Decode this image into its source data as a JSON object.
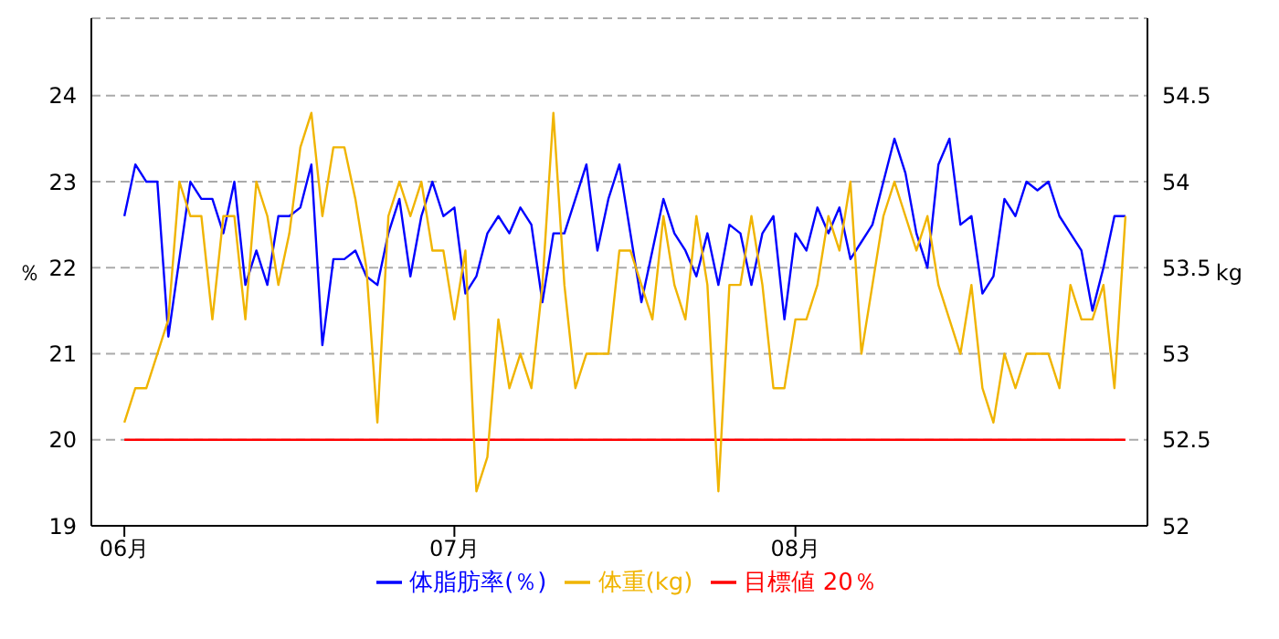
{
  "chart_data": {
    "type": "line",
    "ylabel": "％",
    "y2label": "kg",
    "x": [
      "--06-01",
      "--06-02",
      "--06-03",
      "--06-04",
      "--06-05",
      "--06-06",
      "--06-07",
      "--06-08",
      "--06-09",
      "--06-10",
      "--06-11",
      "--06-12",
      "--06-13",
      "--06-14",
      "--06-15",
      "--06-16",
      "--06-17",
      "--06-18",
      "--06-19",
      "--06-20",
      "--06-21",
      "--06-22",
      "--06-23",
      "--06-24",
      "--06-25",
      "--06-26",
      "--06-27",
      "--06-28",
      "--06-29",
      "--06-30",
      "--07-01",
      "--07-02",
      "--07-03",
      "--07-04",
      "--07-05",
      "--07-06",
      "--07-07",
      "--07-08",
      "--07-09",
      "--07-10",
      "--07-11",
      "--07-12",
      "--07-13",
      "--07-14",
      "--07-15",
      "--07-16",
      "--07-17",
      "--07-18",
      "--07-19",
      "--07-20",
      "--07-21",
      "--07-22",
      "--07-23",
      "--07-24",
      "--07-25",
      "--07-26",
      "--07-27",
      "--07-28",
      "--07-29",
      "--07-30",
      "--07-31",
      "--08-01",
      "--08-02",
      "--08-03",
      "--08-04",
      "--08-05",
      "--08-06",
      "--08-07",
      "--08-08",
      "--08-09",
      "--08-10",
      "--08-11",
      "--08-12",
      "--08-13",
      "--08-14",
      "--08-15",
      "--08-16",
      "--08-17",
      "--08-18",
      "--08-19",
      "--08-20",
      "--08-21",
      "--08-22",
      "--08-23",
      "--08-24",
      "--08-25",
      "--08-26",
      "--08-27",
      "--08-28",
      "--08-29",
      "--08-30",
      "--08-31"
    ],
    "series": [
      {
        "name": "目標値 20％",
        "color": "#ff0000",
        "axis": "y",
        "values": [
          20,
          20,
          20,
          20,
          20,
          20,
          20,
          20,
          20,
          20,
          20,
          20,
          20,
          20,
          20,
          20,
          20,
          20,
          20,
          20,
          20,
          20,
          20,
          20,
          20,
          20,
          20,
          20,
          20,
          20,
          20,
          20,
          20,
          20,
          20,
          20,
          20,
          20,
          20,
          20,
          20,
          20,
          20,
          20,
          20,
          20,
          20,
          20,
          20,
          20,
          20,
          20,
          20,
          20,
          20,
          20,
          20,
          20,
          20,
          20,
          20,
          20,
          20,
          20,
          20,
          20,
          20,
          20,
          20,
          20,
          20,
          20,
          20,
          20,
          20,
          20,
          20,
          20,
          20,
          20,
          20,
          20,
          20,
          20,
          20,
          20,
          20,
          20,
          20,
          20,
          20,
          20
        ]
      },
      {
        "name": "体脂肪率(％)",
        "color": "#0000ff",
        "axis": "y",
        "values": [
          22.6,
          23.2,
          23.0,
          23.0,
          21.2,
          22.1,
          23.0,
          22.8,
          22.8,
          22.4,
          23.0,
          21.8,
          22.2,
          21.8,
          22.6,
          22.6,
          22.7,
          23.2,
          21.1,
          22.1,
          22.1,
          22.2,
          21.9,
          21.8,
          22.4,
          22.8,
          21.9,
          22.6,
          23.0,
          22.6,
          22.7,
          21.7,
          21.9,
          22.4,
          22.6,
          22.4,
          22.7,
          22.5,
          21.6,
          22.4,
          22.4,
          22.8,
          23.2,
          22.2,
          22.8,
          23.2,
          22.4,
          21.6,
          22.2,
          22.8,
          22.4,
          22.2,
          21.9,
          22.4,
          21.8,
          22.5,
          22.4,
          21.8,
          22.4,
          22.6,
          21.4,
          22.4,
          22.2,
          22.7,
          22.4,
          22.7,
          22.1,
          22.3,
          22.5,
          23.0,
          23.5,
          23.1,
          22.4,
          22.0,
          23.2,
          23.5,
          22.5,
          22.6,
          21.7,
          21.9,
          22.8,
          22.6,
          23.0,
          22.9,
          23.0,
          22.6,
          22.4,
          22.2,
          21.5,
          22.0,
          22.6,
          22.6
        ]
      },
      {
        "name": "体重(kg)",
        "color": "#f0b400",
        "axis": "y2",
        "values": [
          52.6,
          52.8,
          52.8,
          53.0,
          53.2,
          54.0,
          53.8,
          53.8,
          53.2,
          53.8,
          53.8,
          53.2,
          54.0,
          53.8,
          53.4,
          53.7,
          54.2,
          54.4,
          53.8,
          54.2,
          54.2,
          53.9,
          53.5,
          52.6,
          53.8,
          54.0,
          53.8,
          54.0,
          53.6,
          53.6,
          53.2,
          53.6,
          52.2,
          52.4,
          53.2,
          52.8,
          53.0,
          52.8,
          53.4,
          54.4,
          53.4,
          52.8,
          53.0,
          53.0,
          53.0,
          53.6,
          53.6,
          53.4,
          53.2,
          53.8,
          53.4,
          53.2,
          53.8,
          53.4,
          52.2,
          53.4,
          53.4,
          53.8,
          53.4,
          52.8,
          52.8,
          53.2,
          53.2,
          53.4,
          53.8,
          53.6,
          54.0,
          53.0,
          53.4,
          53.8,
          54.0,
          53.8,
          53.6,
          53.8,
          53.4,
          53.2,
          53.0,
          53.4,
          52.8,
          52.6,
          53.0,
          52.8,
          53.0,
          53.0,
          53.0,
          52.8,
          53.4,
          53.2,
          53.2,
          53.4,
          52.8,
          53.8
        ]
      }
    ],
    "xlim": [
      "--05-29",
      "--09-02"
    ],
    "xticks": [
      {
        "value": "--06-01",
        "label": "06月"
      },
      {
        "value": "--07-01",
        "label": "07月"
      },
      {
        "value": "--08-01",
        "label": "08月"
      }
    ],
    "ylim": [
      19,
      24.9
    ],
    "yticks": [
      19,
      20,
      21,
      22,
      23,
      24
    ],
    "y2lim": [
      52,
      54.95
    ],
    "y2ticks": [
      52,
      52.5,
      53,
      53.5,
      54,
      54.5
    ],
    "grid": "y",
    "legend": "bottom",
    "line_style": "solid",
    "marker": "none"
  }
}
